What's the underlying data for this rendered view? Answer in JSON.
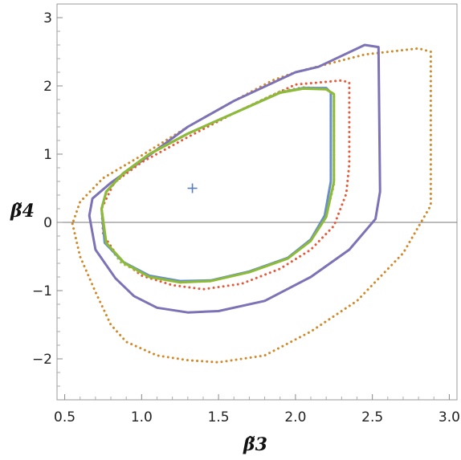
{
  "chart_data": {
    "type": "line",
    "xlabel": "β̃3",
    "ylabel": "β̃4",
    "xlim": [
      0.45,
      3.05
    ],
    "ylim": [
      -2.6,
      3.2
    ],
    "xticks": [
      "0.5",
      "1.0",
      "1.5",
      "2.0",
      "2.5",
      "3.0"
    ],
    "xtick_values": [
      0.5,
      1.0,
      1.5,
      2.0,
      2.5,
      3.0
    ],
    "yticks": [
      "−2",
      "−1",
      "0",
      "1",
      "2",
      "3"
    ],
    "ytick_values": [
      -2,
      -1,
      0,
      1,
      2,
      3
    ],
    "hline": 0,
    "marker": {
      "x": 1.33,
      "y": 0.5,
      "symbol": "+",
      "color": "#5a7fb8"
    },
    "series": [
      {
        "color": "#d08a2a",
        "style": "dotted",
        "points": [
          [
            0.55,
            -0.02
          ],
          [
            0.6,
            -0.5
          ],
          [
            0.7,
            -1.02
          ],
          [
            0.8,
            -1.5
          ],
          [
            0.9,
            -1.75
          ],
          [
            1.1,
            -1.95
          ],
          [
            1.3,
            -2.02
          ],
          [
            1.5,
            -2.05
          ],
          [
            1.8,
            -1.95
          ],
          [
            2.1,
            -1.6
          ],
          [
            2.4,
            -1.15
          ],
          [
            2.7,
            -0.45
          ],
          [
            2.88,
            0.25
          ],
          [
            2.88,
            2.5
          ],
          [
            2.8,
            2.55
          ],
          [
            2.45,
            2.46
          ],
          [
            2.0,
            2.2
          ],
          [
            1.85,
            2.08
          ],
          [
            1.6,
            1.78
          ],
          [
            1.3,
            1.4
          ],
          [
            1.0,
            0.98
          ],
          [
            0.75,
            0.65
          ],
          [
            0.6,
            0.3
          ],
          [
            0.55,
            -0.02
          ]
        ]
      },
      {
        "color": "#7e72b6",
        "style": "solid",
        "points": [
          [
            0.66,
            0.1
          ],
          [
            0.7,
            -0.4
          ],
          [
            0.83,
            -0.82
          ],
          [
            0.95,
            -1.08
          ],
          [
            1.1,
            -1.25
          ],
          [
            1.3,
            -1.32
          ],
          [
            1.5,
            -1.3
          ],
          [
            1.8,
            -1.15
          ],
          [
            2.1,
            -0.8
          ],
          [
            2.35,
            -0.4
          ],
          [
            2.52,
            0.05
          ],
          [
            2.55,
            0.45
          ],
          [
            2.54,
            2.57
          ],
          [
            2.45,
            2.6
          ],
          [
            2.15,
            2.28
          ],
          [
            2.0,
            2.2
          ],
          [
            1.6,
            1.78
          ],
          [
            1.3,
            1.4
          ],
          [
            1.0,
            0.9
          ],
          [
            0.8,
            0.58
          ],
          [
            0.68,
            0.35
          ],
          [
            0.66,
            0.1
          ]
        ]
      },
      {
        "color": "#e65a3a",
        "style": "dotted",
        "points": [
          [
            0.74,
            0.2
          ],
          [
            0.75,
            -0.18
          ],
          [
            0.85,
            -0.52
          ],
          [
            1.0,
            -0.78
          ],
          [
            1.2,
            -0.92
          ],
          [
            1.4,
            -0.98
          ],
          [
            1.65,
            -0.9
          ],
          [
            1.9,
            -0.68
          ],
          [
            2.1,
            -0.4
          ],
          [
            2.25,
            -0.05
          ],
          [
            2.33,
            0.42
          ],
          [
            2.35,
            0.85
          ],
          [
            2.35,
            2.05
          ],
          [
            2.3,
            2.08
          ],
          [
            2.15,
            2.05
          ],
          [
            2.0,
            2.02
          ],
          [
            1.6,
            1.6
          ],
          [
            1.3,
            1.25
          ],
          [
            1.0,
            0.88
          ],
          [
            0.82,
            0.58
          ],
          [
            0.74,
            0.2
          ]
        ]
      },
      {
        "color": "#a8c34a",
        "style": "dotted",
        "points": [
          [
            0.74,
            0.2
          ],
          [
            0.77,
            -0.3
          ],
          [
            0.87,
            -0.6
          ],
          [
            1.05,
            -0.8
          ],
          [
            1.25,
            -0.88
          ],
          [
            1.45,
            -0.86
          ],
          [
            1.7,
            -0.72
          ],
          [
            1.95,
            -0.52
          ],
          [
            2.1,
            -0.25
          ],
          [
            2.2,
            0.1
          ],
          [
            2.25,
            0.55
          ],
          [
            2.25,
            1.88
          ],
          [
            2.2,
            1.96
          ],
          [
            2.05,
            1.98
          ],
          [
            1.9,
            1.92
          ],
          [
            1.6,
            1.6
          ],
          [
            1.3,
            1.3
          ],
          [
            1.05,
            1.0
          ],
          [
            0.88,
            0.7
          ],
          [
            0.77,
            0.45
          ],
          [
            0.74,
            0.2
          ]
        ]
      },
      {
        "color": "#6a8fc7",
        "style": "solid",
        "points": [
          [
            0.74,
            0.2
          ],
          [
            0.76,
            -0.3
          ],
          [
            0.88,
            -0.58
          ],
          [
            1.05,
            -0.78
          ],
          [
            1.25,
            -0.86
          ],
          [
            1.45,
            -0.85
          ],
          [
            1.7,
            -0.72
          ],
          [
            1.95,
            -0.52
          ],
          [
            2.1,
            -0.25
          ],
          [
            2.19,
            0.1
          ],
          [
            2.23,
            0.6
          ],
          [
            2.23,
            1.9
          ],
          [
            2.2,
            1.97
          ],
          [
            2.05,
            1.97
          ],
          [
            1.9,
            1.9
          ],
          [
            1.6,
            1.6
          ],
          [
            1.3,
            1.3
          ],
          [
            1.05,
            1.0
          ],
          [
            0.88,
            0.72
          ],
          [
            0.77,
            0.45
          ],
          [
            0.74,
            0.2
          ]
        ]
      },
      {
        "color": "#8dbb35",
        "style": "solid",
        "points": [
          [
            0.74,
            0.2
          ],
          [
            0.77,
            -0.3
          ],
          [
            0.89,
            -0.6
          ],
          [
            1.05,
            -0.8
          ],
          [
            1.25,
            -0.88
          ],
          [
            1.45,
            -0.86
          ],
          [
            1.7,
            -0.73
          ],
          [
            1.95,
            -0.53
          ],
          [
            2.1,
            -0.27
          ],
          [
            2.2,
            0.08
          ],
          [
            2.25,
            0.6
          ],
          [
            2.25,
            1.88
          ],
          [
            2.2,
            1.95
          ],
          [
            2.05,
            1.96
          ],
          [
            1.9,
            1.9
          ],
          [
            1.6,
            1.6
          ],
          [
            1.3,
            1.3
          ],
          [
            1.05,
            1.0
          ],
          [
            0.88,
            0.72
          ],
          [
            0.77,
            0.45
          ],
          [
            0.74,
            0.2
          ]
        ]
      }
    ]
  }
}
